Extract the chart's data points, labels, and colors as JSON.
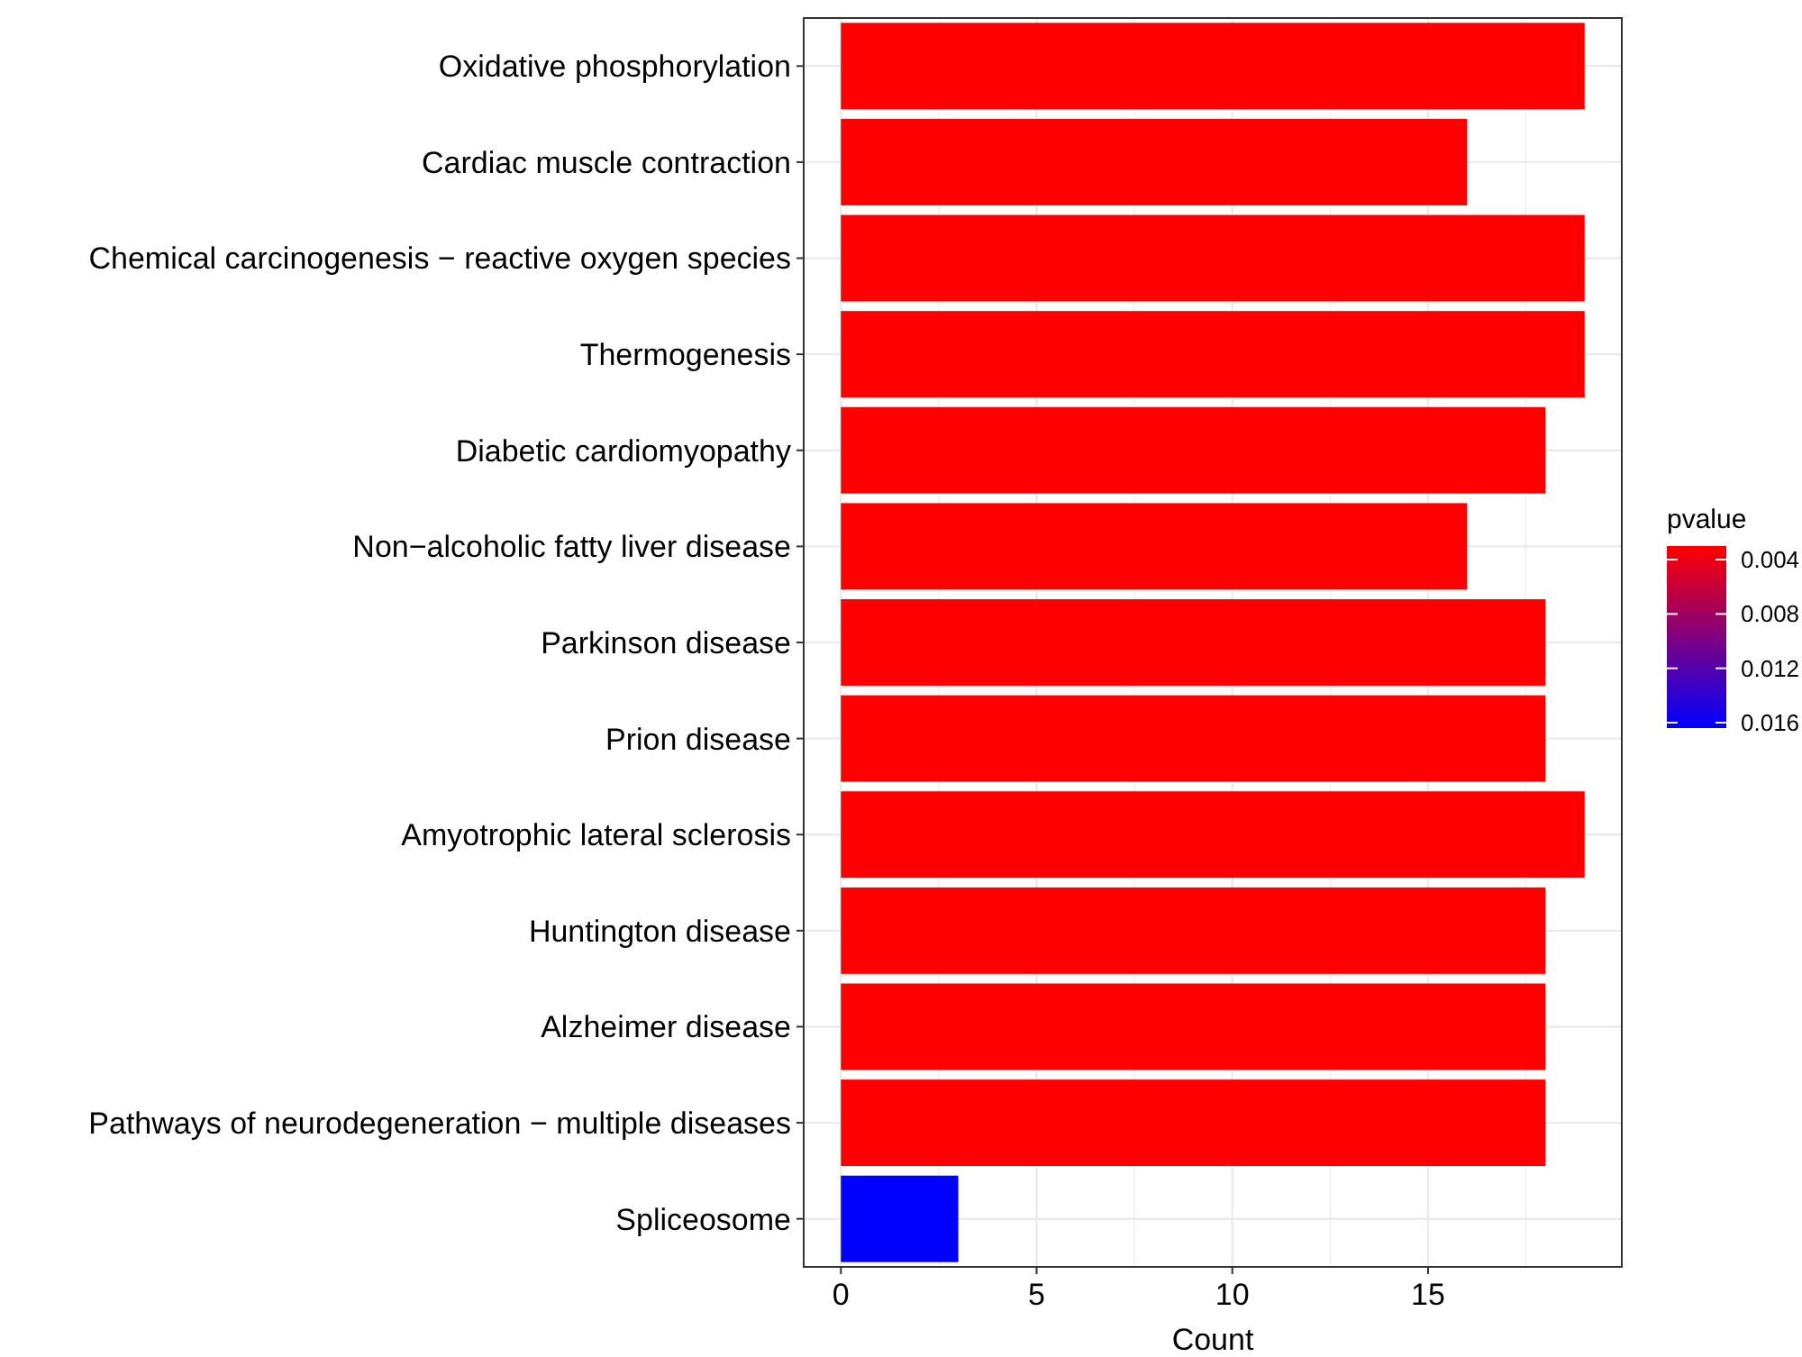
{
  "chart_data": {
    "type": "bar",
    "orientation": "horizontal",
    "xlabel": "Count",
    "clabel": "pvalue",
    "categories": [
      "Oxidative phosphorylation",
      "Cardiac muscle contraction",
      "Chemical carcinogenesis − reactive oxygen species",
      "Thermogenesis",
      "Diabetic cardiomyopathy",
      "Non−alcoholic fatty liver disease",
      "Parkinson disease",
      "Prion disease",
      "Amyotrophic lateral sclerosis",
      "Huntington disease",
      "Alzheimer disease",
      "Pathways of neurodegeneration − multiple diseases",
      "Spliceosome"
    ],
    "values": [
      19,
      16,
      19,
      19,
      18,
      16,
      18,
      18,
      19,
      18,
      18,
      18,
      3
    ],
    "cvalues": [
      0.003,
      0.003,
      0.003,
      0.003,
      0.003,
      0.003,
      0.003,
      0.003,
      0.003,
      0.003,
      0.003,
      0.003,
      0.0164
    ],
    "colors": [
      "#ff0000",
      "#ff0000",
      "#ff0000",
      "#ff0000",
      "#ff0000",
      "#ff0000",
      "#ff0000",
      "#ff0000",
      "#ff0000",
      "#ff0000",
      "#ff0000",
      "#ff0000",
      "#0000ff"
    ],
    "clim": [
      0.003,
      0.0164
    ],
    "cticks": [
      0.004,
      0.008,
      0.012,
      0.016
    ],
    "xlim": [
      -0.95,
      19.95
    ],
    "xticks": [
      0,
      5,
      10,
      15
    ],
    "grid": true
  }
}
